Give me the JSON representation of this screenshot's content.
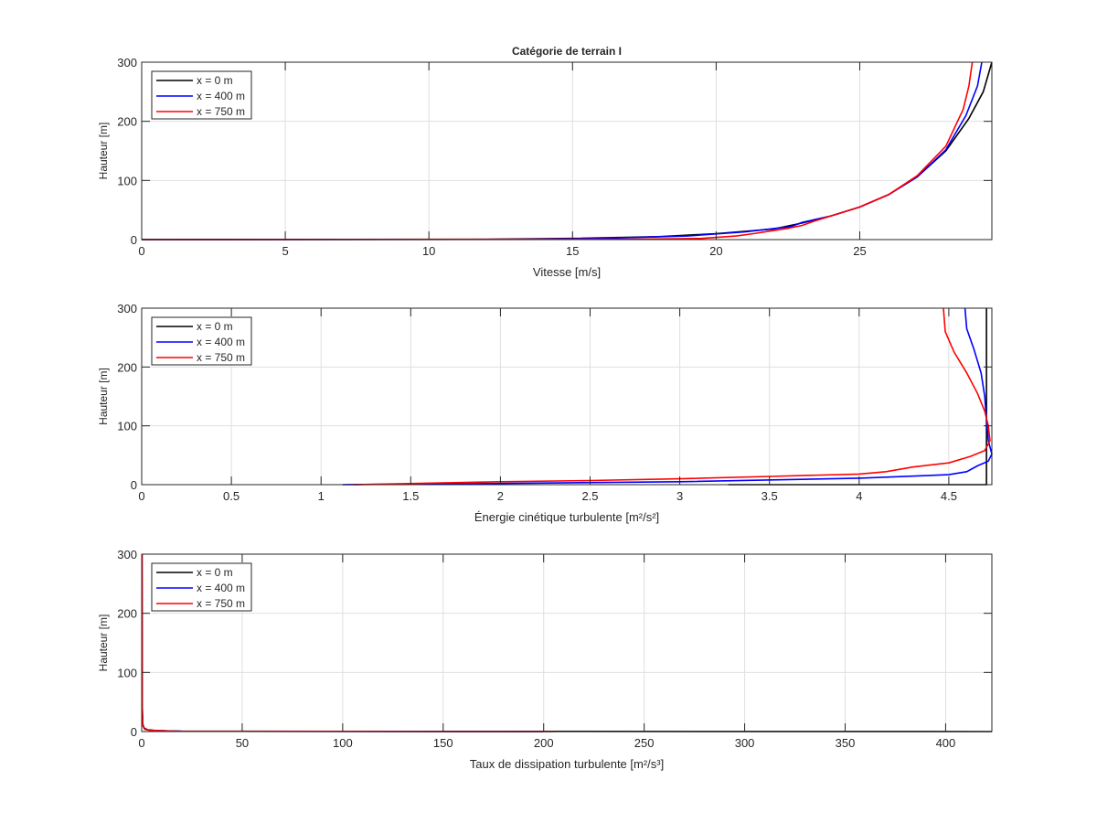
{
  "chart_data": [
    {
      "type": "line",
      "title": "Catégorie de terrain I",
      "xlabel": "Vitesse   [m/s]",
      "ylabel": "Hauteur [m]",
      "xlim": [
        0,
        29.6
      ],
      "ylim": [
        0,
        300
      ],
      "xticks": [
        0,
        5,
        10,
        15,
        20,
        25
      ],
      "yticks": [
        0,
        100,
        200,
        300
      ],
      "grid": true,
      "legend_position": "top-left",
      "series": [
        {
          "name": "x = 0 m",
          "color": "#000000",
          "points": [
            [
              0,
              0
            ],
            [
              12,
              0.5
            ],
            [
              15,
              2
            ],
            [
              18,
              5
            ],
            [
              20,
              10
            ],
            [
              22,
              18
            ],
            [
              23,
              28
            ],
            [
              24,
              40
            ],
            [
              25,
              55
            ],
            [
              26,
              76
            ],
            [
              27,
              106
            ],
            [
              28,
              150
            ],
            [
              28.8,
              205
            ],
            [
              29.3,
              250
            ],
            [
              29.6,
              300
            ]
          ]
        },
        {
          "name": "x = 400 m",
          "color": "#0000ff",
          "points": [
            [
              0,
              0
            ],
            [
              13,
              0.5
            ],
            [
              16,
              2
            ],
            [
              19,
              6
            ],
            [
              21,
              13
            ],
            [
              22.6,
              22
            ],
            [
              23,
              29
            ],
            [
              24,
              40
            ],
            [
              25,
              55
            ],
            [
              26,
              76
            ],
            [
              27,
              106
            ],
            [
              28,
              152
            ],
            [
              28.7,
              210
            ],
            [
              29.1,
              260
            ],
            [
              29.25,
              300
            ]
          ]
        },
        {
          "name": "x = 750 m",
          "color": "#ff0000",
          "points": [
            [
              0,
              0
            ],
            [
              17,
              0.5
            ],
            [
              19.5,
              2
            ],
            [
              20.7,
              6
            ],
            [
              21.3,
              10
            ],
            [
              22.5,
              19
            ],
            [
              23,
              24
            ],
            [
              23.4,
              31
            ],
            [
              24,
              40
            ],
            [
              25,
              55
            ],
            [
              26,
              76
            ],
            [
              27,
              108
            ],
            [
              28,
              158
            ],
            [
              28.6,
              220
            ],
            [
              28.8,
              260
            ],
            [
              28.92,
              300
            ]
          ]
        }
      ]
    },
    {
      "type": "line",
      "title": "",
      "xlabel": "Énergie cinétique turbulente  [m²/s²]",
      "ylabel": "Hauteur [m]",
      "xlim": [
        0,
        4.74
      ],
      "ylim": [
        0,
        300
      ],
      "xticks": [
        0,
        0.5,
        1,
        1.5,
        2,
        2.5,
        3,
        3.5,
        4,
        4.5
      ],
      "xtick_labels": [
        "0",
        "0.5",
        "1",
        "1.5",
        "2",
        "2.5",
        "3",
        "3.5",
        "4",
        "4.5"
      ],
      "yticks": [
        0,
        100,
        200,
        300
      ],
      "grid": true,
      "legend_position": "top-left",
      "series": [
        {
          "name": "x = 0 m",
          "color": "#000000",
          "points": [
            [
              3.27,
              0
            ],
            [
              4.71,
              0
            ],
            [
              4.71,
              300
            ]
          ]
        },
        {
          "name": "x = 400 m",
          "color": "#0000ff",
          "points": [
            [
              1.12,
              0
            ],
            [
              2,
              2
            ],
            [
              3,
              5
            ],
            [
              4,
              11
            ],
            [
              4.5,
              17
            ],
            [
              4.6,
              22
            ],
            [
              4.66,
              32
            ],
            [
              4.72,
              40
            ],
            [
              4.74,
              52
            ],
            [
              4.72,
              75
            ],
            [
              4.71,
              110
            ],
            [
              4.7,
              150
            ],
            [
              4.68,
              190
            ],
            [
              4.64,
              230
            ],
            [
              4.6,
              265
            ],
            [
              4.59,
              300
            ]
          ]
        },
        {
          "name": "x = 750 m",
          "color": "#ff0000",
          "points": [
            [
              1.18,
              0
            ],
            [
              2,
              5
            ],
            [
              2.5,
              7
            ],
            [
              3,
              10
            ],
            [
              3.5,
              14
            ],
            [
              4,
              18
            ],
            [
              4.15,
              22
            ],
            [
              4.3,
              30
            ],
            [
              4.5,
              37
            ],
            [
              4.62,
              48
            ],
            [
              4.7,
              58
            ],
            [
              4.73,
              75
            ],
            [
              4.72,
              100
            ],
            [
              4.7,
              125
            ],
            [
              4.66,
              155
            ],
            [
              4.6,
              190
            ],
            [
              4.53,
              225
            ],
            [
              4.48,
              260
            ],
            [
              4.47,
              300
            ]
          ]
        }
      ]
    },
    {
      "type": "line",
      "title": "",
      "xlabel": "Taux de dissipation turbulente  [m²/s³]",
      "ylabel": "Hauteur [m]",
      "xlim": [
        0,
        423
      ],
      "ylim": [
        0,
        300
      ],
      "xticks": [
        0,
        50,
        100,
        150,
        200,
        250,
        300,
        350,
        400
      ],
      "yticks": [
        0,
        100,
        200,
        300
      ],
      "grid": true,
      "legend_position": "top-left",
      "series": [
        {
          "name": "x = 0 m",
          "color": "#000000",
          "points": [
            [
              423,
              0
            ],
            [
              20,
              0.5
            ],
            [
              8,
              1.5
            ],
            [
              3,
              3
            ],
            [
              1.2,
              6
            ],
            [
              0.6,
              12
            ],
            [
              0.2,
              40
            ],
            [
              0,
              300
            ]
          ]
        },
        {
          "name": "x = 400 m",
          "color": "#0000ff",
          "points": [
            [
              200,
              0
            ],
            [
              20,
              0.5
            ],
            [
              4,
              2
            ],
            [
              1.5,
              4
            ],
            [
              0.6,
              10
            ],
            [
              0.3,
              40
            ],
            [
              0.2,
              300
            ]
          ]
        },
        {
          "name": "x = 750 m",
          "color": "#ff0000",
          "points": [
            [
              205,
              0
            ],
            [
              18,
              0.5
            ],
            [
              4,
              2
            ],
            [
              1.5,
              4
            ],
            [
              0.6,
              10
            ],
            [
              0.3,
              40
            ],
            [
              0.2,
              300
            ]
          ]
        }
      ]
    }
  ]
}
